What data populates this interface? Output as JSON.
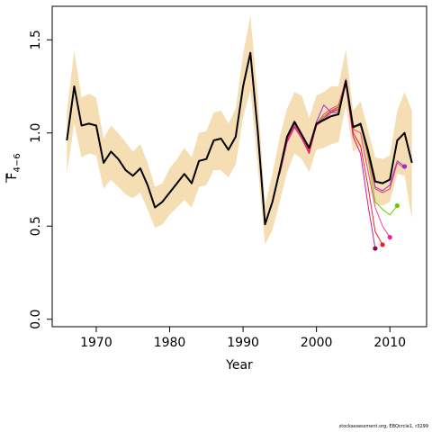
{
  "chart_data": {
    "type": "line",
    "xlabel": "Year",
    "ylabel_main": "F",
    "ylabel_sub": "4−6",
    "xlim": [
      1964,
      2015
    ],
    "ylim": [
      -0.04,
      1.68
    ],
    "xticks": [
      1970,
      1980,
      1990,
      2000,
      2010
    ],
    "yticks": [
      0.0,
      0.5,
      1.0,
      1.5
    ],
    "ytick_labels": [
      "0.0",
      "0.5",
      "1.0",
      "1.5"
    ],
    "band": {
      "color": "#f5deb3",
      "x": [
        1966,
        1967,
        1968,
        1969,
        1970,
        1971,
        1972,
        1973,
        1974,
        1975,
        1976,
        1977,
        1978,
        1979,
        1980,
        1981,
        1982,
        1983,
        1984,
        1985,
        1986,
        1987,
        1988,
        1989,
        1990,
        1991,
        1992,
        1993,
        1994,
        1995,
        1996,
        1997,
        1998,
        1999,
        2000,
        2001,
        2002,
        2003,
        2004,
        2005,
        2006,
        2007,
        2008,
        2009,
        2010,
        2011,
        2012,
        2013
      ],
      "lower": [
        0.78,
        1.05,
        0.87,
        0.89,
        0.88,
        0.7,
        0.75,
        0.71,
        0.67,
        0.65,
        0.68,
        0.59,
        0.49,
        0.51,
        0.56,
        0.6,
        0.64,
        0.6,
        0.71,
        0.72,
        0.8,
        0.8,
        0.76,
        0.83,
        1.08,
        1.23,
        0.82,
        0.4,
        0.48,
        0.63,
        0.79,
        0.89,
        0.86,
        0.79,
        0.91,
        0.92,
        0.94,
        0.95,
        1.15,
        0.9,
        0.93,
        0.8,
        0.62,
        0.61,
        0.63,
        0.78,
        0.77,
        0.54
      ],
      "upper": [
        1.12,
        1.44,
        1.19,
        1.21,
        1.19,
        0.97,
        1.04,
        1.0,
        0.95,
        0.9,
        0.94,
        0.84,
        0.71,
        0.73,
        0.81,
        0.86,
        0.92,
        0.87,
        1.0,
        1.01,
        1.11,
        1.12,
        1.05,
        1.13,
        1.42,
        1.63,
        1.2,
        0.61,
        0.78,
        0.98,
        1.13,
        1.22,
        1.2,
        1.08,
        1.2,
        1.22,
        1.25,
        1.25,
        1.45,
        1.12,
        1.17,
        1.02,
        0.87,
        0.86,
        0.88,
        1.12,
        1.22,
        1.12
      ]
    },
    "series": [
      {
        "color": "#000000",
        "width": 2,
        "x": [
          1966,
          1967,
          1968,
          1969,
          1970,
          1971,
          1972,
          1973,
          1974,
          1975,
          1976,
          1977,
          1978,
          1979,
          1980,
          1981,
          1982,
          1983,
          1984,
          1985,
          1986,
          1987,
          1988,
          1989,
          1990,
          1991,
          1992,
          1993,
          1994,
          1995,
          1996,
          1997,
          1998,
          1999,
          2000,
          2001,
          2002,
          2003,
          2004,
          2005,
          2006,
          2007,
          2008,
          2009,
          2010,
          2011,
          2012,
          2013
        ],
        "values": [
          0.96,
          1.25,
          1.04,
          1.05,
          1.04,
          0.84,
          0.9,
          0.86,
          0.8,
          0.77,
          0.81,
          0.72,
          0.6,
          0.63,
          0.68,
          0.73,
          0.78,
          0.73,
          0.85,
          0.86,
          0.96,
          0.97,
          0.91,
          0.98,
          1.25,
          1.43,
          1.01,
          0.51,
          0.63,
          0.8,
          0.98,
          1.06,
          0.99,
          0.92,
          1.05,
          1.07,
          1.09,
          1.1,
          1.28,
          1.03,
          1.05,
          0.91,
          0.74,
          0.73,
          0.75,
          0.96,
          1.0,
          0.84
        ]
      },
      {
        "color": "#d01c8b",
        "width": 1,
        "x": [
          1995,
          1996,
          1997,
          1998,
          1999,
          2000,
          2001,
          2002,
          2003,
          2004,
          2005,
          2006,
          2007,
          2008
        ],
        "values": [
          0.78,
          0.95,
          1.03,
          0.97,
          0.89,
          1.04,
          1.07,
          1.11,
          1.13,
          1.26,
          0.98,
          0.89,
          0.62,
          0.38
        ]
      },
      {
        "color": "#ff1a1a",
        "width": 1,
        "x": [
          1995,
          1996,
          1997,
          1998,
          1999,
          2000,
          2001,
          2002,
          2003,
          2004,
          2005,
          2006,
          2007,
          2008,
          2009
        ],
        "values": [
          0.79,
          0.96,
          1.04,
          0.98,
          0.9,
          1.05,
          1.08,
          1.12,
          1.14,
          1.27,
          1.0,
          0.93,
          0.72,
          0.47,
          0.4
        ]
      },
      {
        "color": "#ff3d8b",
        "width": 1,
        "x": [
          1995,
          1996,
          1997,
          1998,
          1999,
          2000,
          2001,
          2002,
          2003,
          2004,
          2005,
          2006,
          2007,
          2008,
          2009,
          2010
        ],
        "values": [
          0.8,
          0.97,
          1.04,
          0.98,
          0.91,
          1.05,
          1.1,
          1.13,
          1.15,
          1.29,
          1.02,
          1.0,
          0.8,
          0.6,
          0.5,
          0.44
        ]
      },
      {
        "color": "#66cc00",
        "width": 1,
        "x": [
          1995,
          1996,
          1997,
          1998,
          1999,
          2000,
          2001,
          2002,
          2003,
          2004,
          2005,
          2006,
          2007,
          2008,
          2009,
          2010,
          2011
        ],
        "values": [
          0.8,
          0.97,
          1.05,
          0.99,
          0.91,
          1.05,
          1.09,
          1.12,
          1.13,
          1.28,
          1.03,
          1.04,
          0.87,
          0.63,
          0.59,
          0.56,
          0.61
        ]
      },
      {
        "color": "#9933cc",
        "width": 1,
        "x": [
          1995,
          1996,
          1997,
          1998,
          1999,
          2000,
          2001,
          2002,
          2003,
          2004,
          2005,
          2006,
          2007,
          2008,
          2009,
          2010,
          2011,
          2012
        ],
        "values": [
          0.8,
          0.97,
          1.05,
          0.99,
          0.92,
          1.06,
          1.15,
          1.11,
          1.11,
          1.27,
          1.04,
          1.04,
          0.9,
          0.71,
          0.69,
          0.72,
          0.85,
          0.82
        ]
      },
      {
        "color": "#e8357a",
        "width": 1,
        "x": [
          1995,
          1996,
          1997,
          1998,
          1999,
          2000,
          2001,
          2002,
          2003,
          2004,
          2005,
          2006,
          2007,
          2008,
          2009,
          2010,
          2011,
          2012
        ],
        "values": [
          0.79,
          0.96,
          1.04,
          0.98,
          0.91,
          1.05,
          1.08,
          1.12,
          1.12,
          1.27,
          1.03,
          1.05,
          0.89,
          0.7,
          0.68,
          0.7,
          0.84,
          0.81
        ]
      }
    ],
    "endpoints": [
      {
        "x": 2008,
        "y": 0.38,
        "color": "#8b0a50"
      },
      {
        "x": 2009,
        "y": 0.4,
        "color": "#ff1a1a"
      },
      {
        "x": 2010,
        "y": 0.44,
        "color": "#ff1a8c"
      },
      {
        "x": 2011,
        "y": 0.61,
        "color": "#66cc00"
      },
      {
        "x": 2012,
        "y": 0.82,
        "color": "#9933cc"
      }
    ]
  },
  "credit": "stockassessment.org, EBQcrcle1, r3299"
}
